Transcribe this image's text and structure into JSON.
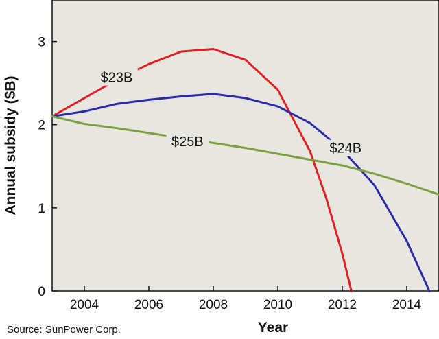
{
  "chart_data": {
    "type": "line",
    "title": "",
    "xlabel": "Year",
    "ylabel": "Annual subsidy ($B)",
    "xlim": [
      2003,
      2015
    ],
    "ylim": [
      0,
      3.5
    ],
    "x_ticks": [
      "2004",
      "2006",
      "2008",
      "2010",
      "2012",
      "2014"
    ],
    "y_ticks": [
      "0",
      "1",
      "2",
      "3"
    ],
    "grid": false,
    "background": "#e8e6e0",
    "source": "Source: SunPower Corp.",
    "series": [
      {
        "name": "$23B",
        "color": "#e02020",
        "label_at": [
          2005.0,
          2.57
        ],
        "points": [
          [
            2003,
            2.1
          ],
          [
            2004,
            2.32
          ],
          [
            2005,
            2.54
          ],
          [
            2006,
            2.73
          ],
          [
            2007,
            2.88
          ],
          [
            2008,
            2.91
          ],
          [
            2009,
            2.78
          ],
          [
            2010,
            2.42
          ],
          [
            2011,
            1.68
          ],
          [
            2011.5,
            1.12
          ],
          [
            2012,
            0.45
          ],
          [
            2012.28,
            0
          ]
        ]
      },
      {
        "name": "$24B",
        "color": "#2a2aa8",
        "label_at": [
          2012.1,
          1.72
        ],
        "points": [
          [
            2003,
            2.1
          ],
          [
            2004,
            2.16
          ],
          [
            2005,
            2.25
          ],
          [
            2006,
            2.3
          ],
          [
            2007,
            2.34
          ],
          [
            2008,
            2.37
          ],
          [
            2009,
            2.32
          ],
          [
            2010,
            2.22
          ],
          [
            2011,
            2.02
          ],
          [
            2012,
            1.7
          ],
          [
            2013,
            1.27
          ],
          [
            2014,
            0.6
          ],
          [
            2014.7,
            0
          ]
        ]
      },
      {
        "name": "$25B",
        "color": "#7aa040",
        "label_at": [
          2007.2,
          1.8
        ],
        "points": [
          [
            2003,
            2.1
          ],
          [
            2004,
            2.01
          ],
          [
            2005,
            1.96
          ],
          [
            2006,
            1.9
          ],
          [
            2007,
            1.84
          ],
          [
            2008,
            1.78
          ],
          [
            2009,
            1.72
          ],
          [
            2010,
            1.65
          ],
          [
            2011,
            1.58
          ],
          [
            2012,
            1.51
          ],
          [
            2013,
            1.41
          ],
          [
            2014,
            1.29
          ],
          [
            2015,
            1.16
          ]
        ]
      }
    ]
  }
}
